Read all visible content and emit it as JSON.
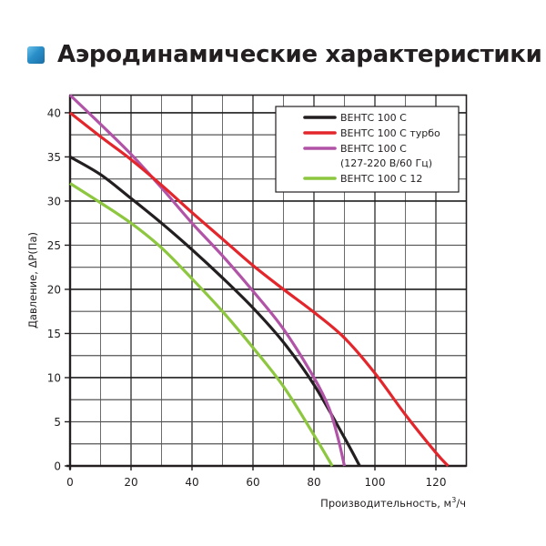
{
  "page": {
    "title": "Аэродинамические характеристики",
    "title_icon": "blue-square-icon",
    "title_icon_color": "#2a8fc9"
  },
  "chart_data": {
    "type": "line",
    "title": "Аэродинамические характеристики",
    "xlabel": "Производительность, м³/ч",
    "ylabel": "Давление, ΔP(Па)",
    "xlim": [
      0,
      130
    ],
    "ylim": [
      0,
      42
    ],
    "x_ticks": [
      "0",
      "20",
      "40",
      "60",
      "80",
      "100",
      "120"
    ],
    "y_ticks": [
      "0",
      "5",
      "10",
      "15",
      "20",
      "25",
      "30",
      "35",
      "40"
    ],
    "grid": true,
    "legend_position": "upper right",
    "series": [
      {
        "name": "ВЕНТС 100 С",
        "color": "#231f20",
        "points": [
          [
            0,
            35
          ],
          [
            10,
            33
          ],
          [
            20,
            30.3
          ],
          [
            30,
            27.5
          ],
          [
            40,
            24.5
          ],
          [
            50,
            21.3
          ],
          [
            60,
            17.9
          ],
          [
            70,
            14
          ],
          [
            80,
            9.2
          ],
          [
            90,
            3.2
          ],
          [
            95,
            0
          ]
        ]
      },
      {
        "name": "ВЕНТС 100 С турбо",
        "color": "#e3262b",
        "points": [
          [
            0,
            40
          ],
          [
            10,
            37.3
          ],
          [
            20,
            34.7
          ],
          [
            30,
            31.8
          ],
          [
            40,
            28.7
          ],
          [
            50,
            25.7
          ],
          [
            60,
            22.7
          ],
          [
            70,
            20
          ],
          [
            80,
            17.4
          ],
          [
            90,
            14.5
          ],
          [
            100,
            10.5
          ],
          [
            110,
            5.8
          ],
          [
            120,
            1.5
          ],
          [
            124,
            0
          ]
        ]
      },
      {
        "name": "ВЕНТС 100 С (127-220 В/60 Гц)",
        "color": "#b153a6",
        "points": [
          [
            0,
            42
          ],
          [
            10,
            38.7
          ],
          [
            20,
            35.3
          ],
          [
            30,
            31.5
          ],
          [
            40,
            27.5
          ],
          [
            50,
            23.8
          ],
          [
            60,
            19.8
          ],
          [
            70,
            15.5
          ],
          [
            80,
            10
          ],
          [
            85,
            6.5
          ],
          [
            88,
            3
          ],
          [
            90,
            0
          ]
        ]
      },
      {
        "name": "ВЕНТС 100 С 12",
        "color": "#8dc63f",
        "points": [
          [
            0,
            32
          ],
          [
            10,
            29.8
          ],
          [
            20,
            27.5
          ],
          [
            30,
            24.7
          ],
          [
            40,
            21.2
          ],
          [
            50,
            17.5
          ],
          [
            60,
            13.4
          ],
          [
            70,
            9
          ],
          [
            80,
            3.5
          ],
          [
            86,
            0
          ]
        ]
      }
    ],
    "legend": [
      {
        "label": "ВЕНТС 100 С",
        "color": "#231f20"
      },
      {
        "label": "ВЕНТС 100 С турбо",
        "color": "#e3262b"
      },
      {
        "label": "ВЕНТС 100 С",
        "label_line2": "(127-220 В/60 Гц)",
        "color": "#b153a6"
      },
      {
        "label": "ВЕНТС 100 С 12",
        "color": "#8dc63f"
      }
    ]
  }
}
